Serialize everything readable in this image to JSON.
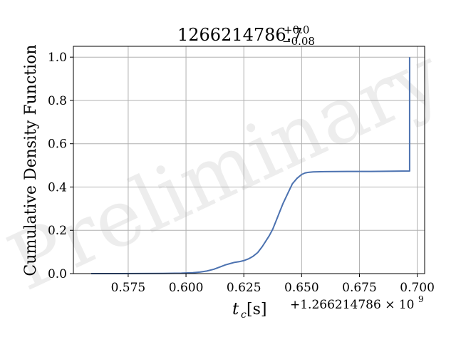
{
  "chart_data": {
    "type": "line",
    "title": {
      "base": "1266214786.7",
      "sup": "+0.0",
      "sub": "−0.08"
    },
    "xlabel": {
      "main": "t",
      "sub": "c",
      "unit": "[s]"
    },
    "ylabel": "Cumulative Density Function",
    "x_offset_label": "+1.266214786 × 10",
    "x_offset_exponent": "9",
    "watermark": "Preliminary",
    "xlim": [
      0.5513,
      0.7032
    ],
    "ylim": [
      0.0,
      1.05
    ],
    "xticks": [
      0.575,
      0.6,
      0.625,
      0.65,
      0.675,
      0.7
    ],
    "xtick_labels": [
      "0.575",
      "0.600",
      "0.625",
      "0.650",
      "0.675",
      "0.700"
    ],
    "yticks": [
      0.0,
      0.2,
      0.4,
      0.6,
      0.8,
      1.0
    ],
    "ytick_labels": [
      "0.0",
      "0.2",
      "0.4",
      "0.6",
      "0.8",
      "1.0"
    ],
    "grid": true,
    "line_color": "#4c72b0",
    "series": [
      {
        "x": [
          0.559,
          0.57,
          0.58,
          0.59,
          0.598,
          0.603,
          0.606,
          0.609,
          0.612,
          0.615,
          0.617,
          0.619,
          0.621,
          0.623,
          0.625,
          0.627,
          0.629,
          0.631,
          0.633,
          0.6345,
          0.636,
          0.6375,
          0.639,
          0.6405,
          0.642,
          0.644,
          0.646,
          0.648,
          0.65,
          0.6515,
          0.653,
          0.655,
          0.66,
          0.67,
          0.68,
          0.69,
          0.6967,
          0.6967
        ],
        "y": [
          0.0,
          0.0,
          0.0005,
          0.001,
          0.002,
          0.004,
          0.007,
          0.012,
          0.02,
          0.032,
          0.04,
          0.046,
          0.052,
          0.055,
          0.06,
          0.068,
          0.08,
          0.097,
          0.125,
          0.15,
          0.175,
          0.205,
          0.245,
          0.285,
          0.325,
          0.37,
          0.415,
          0.44,
          0.458,
          0.465,
          0.468,
          0.47,
          0.471,
          0.472,
          0.472,
          0.473,
          0.474,
          1.0
        ]
      }
    ]
  }
}
